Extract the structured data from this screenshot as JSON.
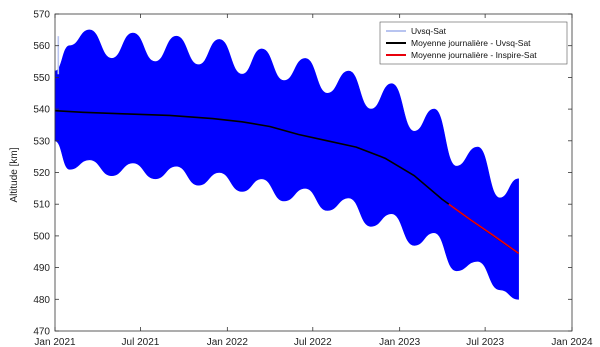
{
  "chart_data": {
    "type": "line",
    "title": "",
    "xlabel": "",
    "ylabel": "Altitude [km]",
    "xlim": [
      "2021-01-01",
      "2024-01-01"
    ],
    "ylim": [
      470,
      570
    ],
    "grid": false,
    "legend_position": "top-right",
    "x_ticks": [
      "2021-01-01",
      "2021-07-01",
      "2022-01-01",
      "2022-07-01",
      "2023-01-01",
      "2023-07-01",
      "2024-01-01"
    ],
    "x_tick_labels": [
      "Jan 2021",
      "Jul 2021",
      "Jan 2022",
      "Jul 2022",
      "Jan 2023",
      "Jul 2023",
      "Jan 2024"
    ],
    "y_ticks": [
      470,
      480,
      490,
      500,
      510,
      520,
      530,
      540,
      550,
      560,
      570
    ],
    "series": [
      {
        "name": "Uvsq-Sat",
        "kind": "band",
        "color": "#0000ff",
        "legend_color": "#b8c4f0",
        "x": [
          "2021-01-01",
          "2021-02-01",
          "2021-03-15",
          "2021-05-01",
          "2021-06-15",
          "2021-08-01",
          "2021-09-15",
          "2021-11-01",
          "2021-12-15",
          "2022-02-01",
          "2022-03-15",
          "2022-05-01",
          "2022-06-15",
          "2022-08-01",
          "2022-09-15",
          "2022-11-01",
          "2022-12-15",
          "2023-02-01",
          "2023-03-15",
          "2023-05-01",
          "2023-06-15",
          "2023-08-01",
          "2023-09-10"
        ],
        "upper": [
          552,
          560,
          565,
          556,
          564,
          555,
          563,
          554,
          562,
          551,
          559,
          549,
          556,
          545,
          552,
          540,
          548,
          533,
          540,
          522,
          528,
          512,
          518
        ],
        "lower": [
          530,
          521,
          524,
          519,
          523,
          518,
          522,
          516,
          520,
          514,
          518,
          511,
          515,
          508,
          512,
          503,
          507,
          497,
          501,
          489,
          492,
          483,
          480
        ]
      },
      {
        "name": "Moyenne journalière - Uvsq-Sat",
        "kind": "line",
        "color": "#000000",
        "x": [
          "2021-01-01",
          "2021-03-01",
          "2021-06-01",
          "2021-09-01",
          "2021-12-01",
          "2022-02-01",
          "2022-04-01",
          "2022-06-01",
          "2022-08-01",
          "2022-10-01",
          "2022-12-01",
          "2023-02-01",
          "2023-04-01",
          "2023-06-01",
          "2023-09-10"
        ],
        "values": [
          539.5,
          539.0,
          538.5,
          538.0,
          537.0,
          536.0,
          534.5,
          532.0,
          530.0,
          528.0,
          524.5,
          519.0,
          511.5,
          505.0,
          494.5
        ]
      },
      {
        "name": "Moyenne journalière - Inspire-Sat",
        "kind": "line",
        "color": "#e8000b",
        "x": [
          "2023-04-15",
          "2023-06-01",
          "2023-07-15",
          "2023-09-10"
        ],
        "values": [
          510.0,
          505.0,
          500.5,
          494.5
        ]
      }
    ],
    "annotations": [
      {
        "text": "",
        "x": "2021-01-08",
        "y_from": 551,
        "y_to": 563,
        "color": "#b8c4f0"
      }
    ]
  }
}
